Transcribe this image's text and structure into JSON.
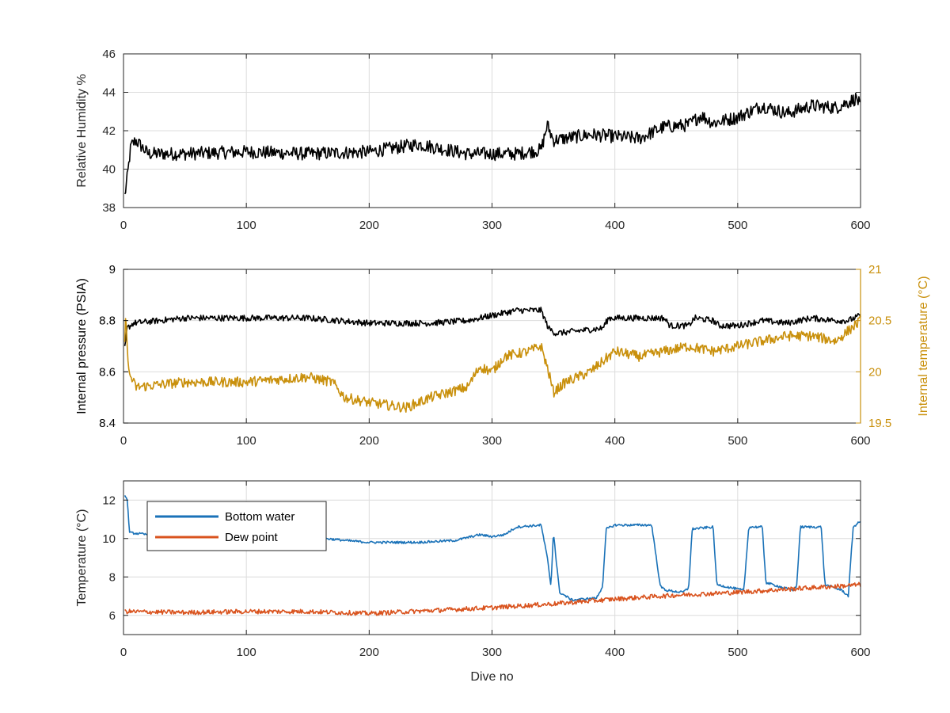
{
  "figure": {
    "xlabel": "Dive no"
  },
  "colors": {
    "black": "#000000",
    "gold": "#C9900C",
    "blue": "#1A72B8",
    "orange": "#D9531E",
    "grid": "#DCDCDC",
    "axis": "#262626",
    "tick_text": "#262626"
  },
  "chart_data": [
    {
      "id": "humidity",
      "type": "line",
      "xlim": [
        0,
        600
      ],
      "ylim": [
        38,
        46
      ],
      "xticks": [
        0,
        100,
        200,
        300,
        400,
        500,
        600
      ],
      "yticks": [
        38,
        40,
        42,
        44,
        46
      ],
      "xtick_labels": [
        "0",
        "100",
        "200",
        "300",
        "400",
        "500",
        "600"
      ],
      "ytick_labels": [
        "38",
        "40",
        "42",
        "44",
        "46"
      ],
      "ylabel": "Relative Humidity %",
      "xlabel": "",
      "grid": true,
      "series": [
        {
          "color": "black",
          "noise": 0.35,
          "points": [
            [
              1,
              38.6
            ],
            [
              3,
              39.5
            ],
            [
              6,
              41.2
            ],
            [
              10,
              41.5
            ],
            [
              20,
              40.8
            ],
            [
              50,
              40.8
            ],
            [
              100,
              40.9
            ],
            [
              150,
              40.8
            ],
            [
              200,
              40.9
            ],
            [
              240,
              41.3
            ],
            [
              280,
              40.8
            ],
            [
              320,
              40.8
            ],
            [
              340,
              41.0
            ],
            [
              345,
              42.3
            ],
            [
              350,
              41.5
            ],
            [
              360,
              41.6
            ],
            [
              380,
              41.8
            ],
            [
              400,
              41.7
            ],
            [
              420,
              41.6
            ],
            [
              440,
              42.2
            ],
            [
              460,
              42.3
            ],
            [
              470,
              42.8
            ],
            [
              480,
              42.4
            ],
            [
              500,
              42.7
            ],
            [
              520,
              43.3
            ],
            [
              540,
              42.9
            ],
            [
              560,
              43.3
            ],
            [
              580,
              43.2
            ],
            [
              597,
              43.7
            ],
            [
              600,
              43.2
            ]
          ]
        }
      ]
    },
    {
      "id": "pressure_temperature",
      "type": "line",
      "xlim": [
        0,
        600
      ],
      "ylim": [
        8.4,
        9
      ],
      "y2lim": [
        19.5,
        21
      ],
      "xticks": [
        0,
        100,
        200,
        300,
        400,
        500,
        600
      ],
      "yticks": [
        8.4,
        8.6,
        8.8,
        9
      ],
      "y2ticks": [
        19.5,
        20,
        20.5,
        21
      ],
      "xtick_labels": [
        "0",
        "100",
        "200",
        "300",
        "400",
        "500",
        "600"
      ],
      "ytick_labels": [
        "8.4",
        "8.6",
        "8.8",
        "9"
      ],
      "y2tick_labels": [
        "19.5",
        "20",
        "20.5",
        "21"
      ],
      "ylabel": "Internal pressure (PSIA)",
      "y2label": "Internal temperature (°C)",
      "xlabel": "",
      "grid": true,
      "series": [
        {
          "axis": "left",
          "color": "black",
          "noise": 0.012,
          "points": [
            [
              1,
              8.69
            ],
            [
              3,
              8.77
            ],
            [
              8,
              8.79
            ],
            [
              50,
              8.81
            ],
            [
              100,
              8.81
            ],
            [
              150,
              8.81
            ],
            [
              200,
              8.79
            ],
            [
              250,
              8.79
            ],
            [
              280,
              8.8
            ],
            [
              300,
              8.82
            ],
            [
              320,
              8.84
            ],
            [
              340,
              8.84
            ],
            [
              346,
              8.77
            ],
            [
              352,
              8.75
            ],
            [
              370,
              8.76
            ],
            [
              390,
              8.77
            ],
            [
              395,
              8.81
            ],
            [
              440,
              8.81
            ],
            [
              445,
              8.78
            ],
            [
              460,
              8.78
            ],
            [
              465,
              8.81
            ],
            [
              480,
              8.8
            ],
            [
              485,
              8.78
            ],
            [
              500,
              8.78
            ],
            [
              520,
              8.8
            ],
            [
              540,
              8.79
            ],
            [
              560,
              8.81
            ],
            [
              580,
              8.8
            ],
            [
              590,
              8.8
            ],
            [
              600,
              8.82
            ]
          ]
        },
        {
          "axis": "right",
          "color": "gold",
          "noise": 0.05,
          "points": [
            [
              1,
              20.25
            ],
            [
              2,
              20.6
            ],
            [
              4,
              20.0
            ],
            [
              10,
              19.85
            ],
            [
              50,
              19.9
            ],
            [
              100,
              19.9
            ],
            [
              150,
              19.95
            ],
            [
              170,
              19.9
            ],
            [
              180,
              19.75
            ],
            [
              200,
              19.7
            ],
            [
              230,
              19.65
            ],
            [
              250,
              19.75
            ],
            [
              280,
              19.85
            ],
            [
              290,
              20.05
            ],
            [
              300,
              20.0
            ],
            [
              310,
              20.15
            ],
            [
              330,
              20.2
            ],
            [
              340,
              20.25
            ],
            [
              346,
              20.0
            ],
            [
              350,
              19.8
            ],
            [
              360,
              19.9
            ],
            [
              380,
              20.0
            ],
            [
              400,
              20.2
            ],
            [
              420,
              20.15
            ],
            [
              440,
              20.2
            ],
            [
              460,
              20.25
            ],
            [
              480,
              20.2
            ],
            [
              500,
              20.25
            ],
            [
              520,
              20.3
            ],
            [
              540,
              20.35
            ],
            [
              560,
              20.35
            ],
            [
              580,
              20.3
            ],
            [
              600,
              20.5
            ]
          ]
        }
      ]
    },
    {
      "id": "temperature",
      "type": "line",
      "xlim": [
        0,
        600
      ],
      "ylim": [
        5,
        13
      ],
      "xticks": [
        0,
        100,
        200,
        300,
        400,
        500,
        600
      ],
      "yticks": [
        6,
        8,
        10,
        12
      ],
      "xtick_labels": [
        "0",
        "100",
        "200",
        "300",
        "400",
        "500",
        "600"
      ],
      "ytick_labels": [
        "6",
        "8",
        "10",
        "12"
      ],
      "ylabel": "Temperature (°C)",
      "xlabel": "Dive no",
      "grid": true,
      "legend": "top-left",
      "series": [
        {
          "name": "Bottom water",
          "color": "blue",
          "noise": 0.06,
          "points": [
            [
              1,
              12.3
            ],
            [
              3,
              12.0
            ],
            [
              5,
              10.3
            ],
            [
              20,
              10.2
            ],
            [
              60,
              10.3
            ],
            [
              100,
              10.3
            ],
            [
              150,
              10.1
            ],
            [
              180,
              9.9
            ],
            [
              200,
              9.8
            ],
            [
              240,
              9.8
            ],
            [
              270,
              9.9
            ],
            [
              290,
              10.2
            ],
            [
              300,
              10.1
            ],
            [
              310,
              10.2
            ],
            [
              320,
              10.6
            ],
            [
              340,
              10.7
            ],
            [
              345,
              9.0
            ],
            [
              348,
              7.5
            ],
            [
              350,
              10.4
            ],
            [
              352,
              9.0
            ],
            [
              355,
              7.2
            ],
            [
              365,
              6.8
            ],
            [
              385,
              6.9
            ],
            [
              390,
              7.5
            ],
            [
              393,
              10.5
            ],
            [
              400,
              10.7
            ],
            [
              430,
              10.7
            ],
            [
              437,
              7.5
            ],
            [
              442,
              7.3
            ],
            [
              455,
              7.2
            ],
            [
              460,
              7.4
            ],
            [
              463,
              10.5
            ],
            [
              480,
              10.6
            ],
            [
              483,
              7.6
            ],
            [
              490,
              7.5
            ],
            [
              505,
              7.3
            ],
            [
              509,
              10.6
            ],
            [
              520,
              10.6
            ],
            [
              523,
              7.7
            ],
            [
              545,
              7.3
            ],
            [
              548,
              7.5
            ],
            [
              551,
              10.6
            ],
            [
              568,
              10.6
            ],
            [
              571,
              7.6
            ],
            [
              585,
              7.3
            ],
            [
              590,
              7.0
            ],
            [
              594,
              10.6
            ],
            [
              600,
              10.9
            ]
          ]
        },
        {
          "name": "Dew point",
          "color": "orange",
          "noise": 0.12,
          "points": [
            [
              1,
              6.2
            ],
            [
              50,
              6.15
            ],
            [
              100,
              6.2
            ],
            [
              150,
              6.2
            ],
            [
              200,
              6.1
            ],
            [
              250,
              6.25
            ],
            [
              300,
              6.4
            ],
            [
              350,
              6.6
            ],
            [
              400,
              6.85
            ],
            [
              450,
              7.05
            ],
            [
              500,
              7.2
            ],
            [
              550,
              7.4
            ],
            [
              590,
              7.55
            ],
            [
              600,
              7.6
            ]
          ]
        }
      ]
    }
  ]
}
